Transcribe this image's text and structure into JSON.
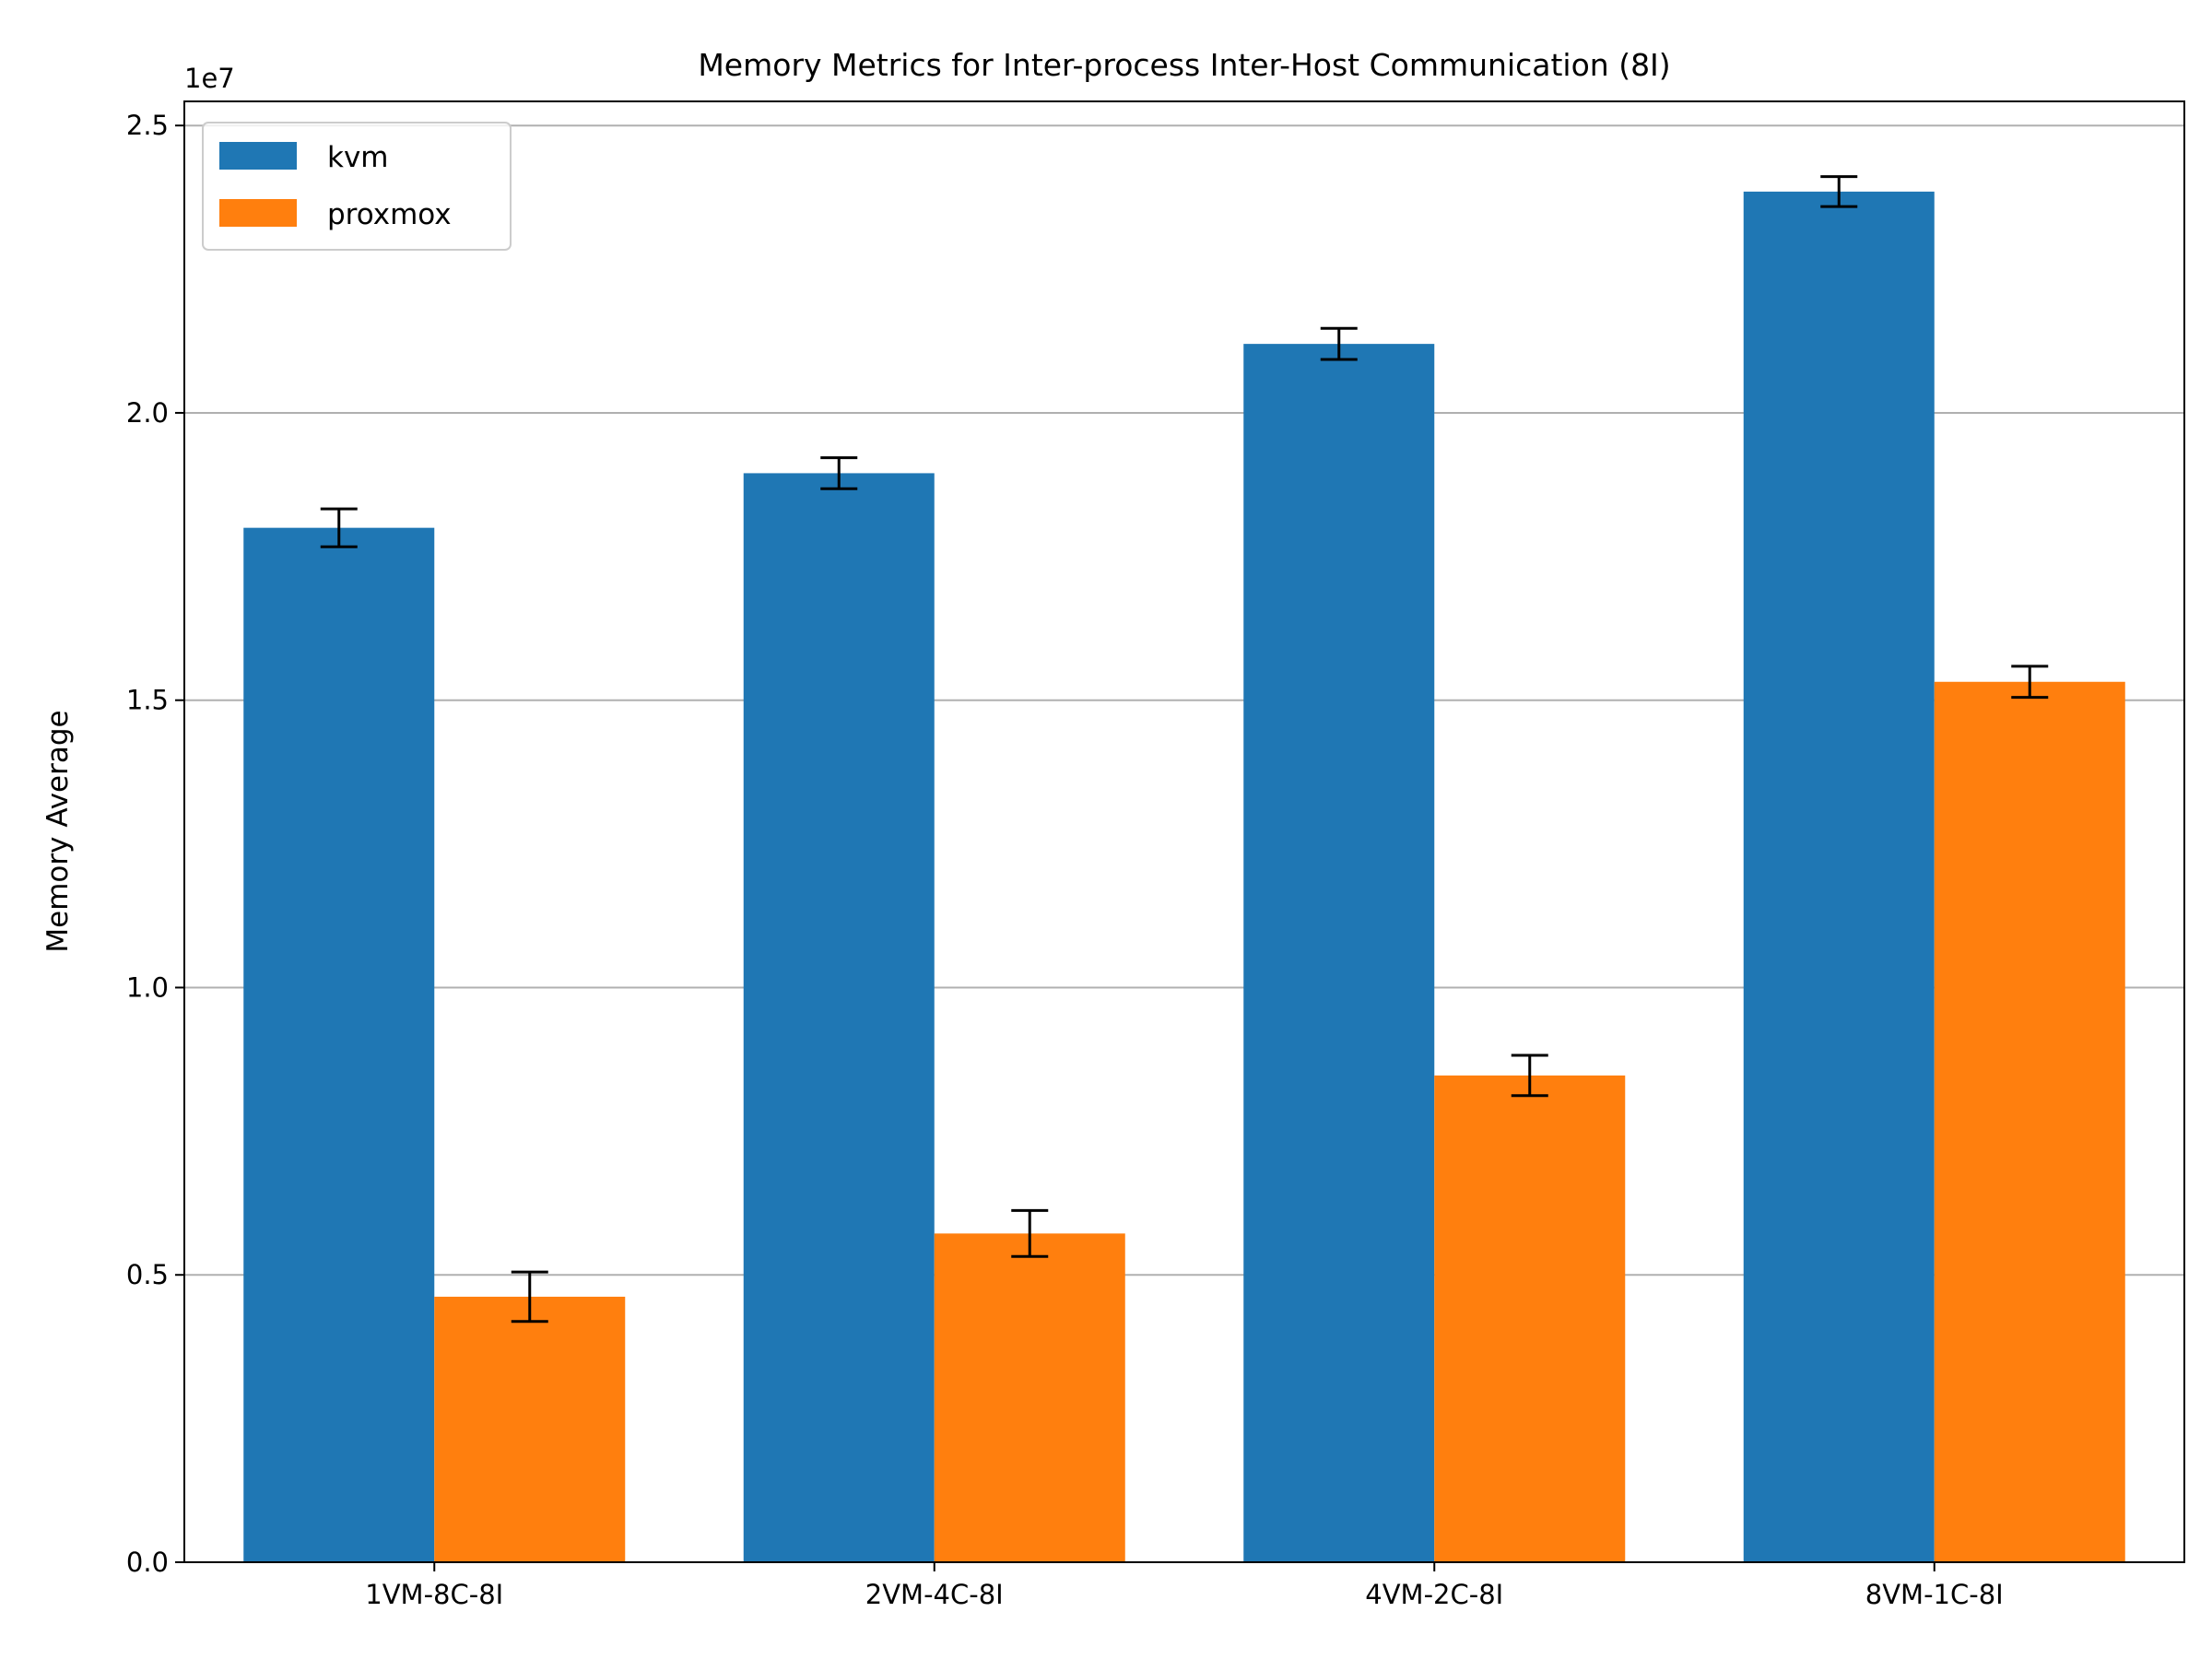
{
  "chart_data": {
    "type": "bar",
    "title": "Memory Metrics for Inter-process Inter-Host Communication (8I)",
    "xlabel": "",
    "ylabel": "Memory Average",
    "y_offset_label": "1e7",
    "categories": [
      "1VM-8C-8I",
      "2VM-4C-8I",
      "4VM-2C-8I",
      "8VM-1C-8I"
    ],
    "series": [
      {
        "name": "kvm",
        "color": "#1f77b4",
        "values": [
          18000000,
          18950000,
          21200000,
          23850000
        ],
        "errors": [
          330000,
          270000,
          270000,
          260000
        ]
      },
      {
        "name": "proxmox",
        "color": "#ff7f0e",
        "values": [
          4620000,
          5720000,
          8470000,
          15320000
        ],
        "errors": [
          430000,
          400000,
          350000,
          270000
        ]
      }
    ],
    "ylim": [
      0,
      25420000
    ],
    "yticks": [
      0,
      5000000,
      10000000,
      15000000,
      20000000,
      25000000
    ],
    "ytick_labels": [
      "0.0",
      "0.5",
      "1.0",
      "1.5",
      "2.0",
      "2.5"
    ],
    "grid": "y",
    "legend_position": "upper-left"
  }
}
